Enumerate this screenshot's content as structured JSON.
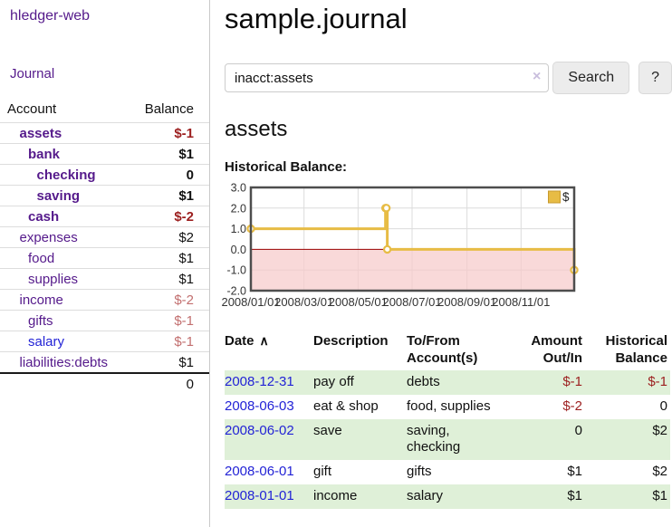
{
  "app": {
    "title": "hledger-web"
  },
  "colors": {
    "link_purple": "#551a8b",
    "link_blue": "#2323d6",
    "negative_strong": "#9c1f1f",
    "negative_muted": "#c26f6f",
    "row_stripe_green": "#dff0d8",
    "chart_line_gold": "#e7bc45"
  },
  "sidebar": {
    "journal_link": "Journal",
    "headers": {
      "account": "Account",
      "balance": "Balance"
    },
    "accounts": [
      {
        "name": "assets",
        "balance": "$-1",
        "level": 1,
        "bold": true,
        "neg": "strong"
      },
      {
        "name": "bank",
        "balance": "$1",
        "level": 2,
        "bold": true
      },
      {
        "name": "checking",
        "balance": "0",
        "level": 3,
        "bold": true
      },
      {
        "name": "saving",
        "balance": "$1",
        "level": 3,
        "bold": true
      },
      {
        "name": "cash",
        "balance": "$-2",
        "level": 2,
        "bold": true,
        "neg": "strong"
      },
      {
        "name": "expenses",
        "balance": "$2",
        "level": 1
      },
      {
        "name": "food",
        "balance": "$1",
        "level": 2
      },
      {
        "name": "supplies",
        "balance": "$1",
        "level": 2
      },
      {
        "name": "income",
        "balance": "$-2",
        "level": 1,
        "neg": "muted"
      },
      {
        "name": "gifts",
        "balance": "$-1",
        "level": 2,
        "neg": "muted"
      },
      {
        "name": "salary",
        "balance": "$-1",
        "level": 2,
        "neg": "muted",
        "link": "blue"
      },
      {
        "name": "liabilities:debts",
        "balance": "$1",
        "level": 1
      }
    ],
    "total": "0"
  },
  "main": {
    "title": "sample.journal",
    "search": {
      "value": "inacct:assets",
      "clear_icon": "×",
      "search_label": "Search",
      "help_label": "?"
    },
    "account_heading": "assets",
    "chart_label": "Historical Balance:"
  },
  "chart_data": {
    "type": "line",
    "step": true,
    "title": "Historical Balance",
    "series": [
      {
        "name": "$",
        "points": [
          [
            "2008-01-01",
            1
          ],
          [
            "2008-06-01",
            2
          ],
          [
            "2008-06-02",
            2
          ],
          [
            "2008-06-03",
            0
          ],
          [
            "2008-12-31",
            -1
          ]
        ]
      }
    ],
    "x_range": [
      "2008-01-01",
      "2008-12-31"
    ],
    "ylim": [
      -2,
      3
    ],
    "y_ticks": [
      "3.0",
      "2.0",
      "1.0",
      "0.0",
      "-1.0",
      "-2.0"
    ],
    "x_ticks": [
      {
        "label": "2008/01/01",
        "date": "2008-01-01"
      },
      {
        "label": "2008/03/01",
        "date": "2008-03-01"
      },
      {
        "label": "2008/05/01",
        "date": "2008-05-01"
      },
      {
        "label": "2008/07/01",
        "date": "2008-07-01"
      },
      {
        "label": "2008/09/01",
        "date": "2008-09-01"
      },
      {
        "label": "2008/11/01",
        "date": "2008-11-01"
      }
    ],
    "legend": [
      {
        "label": "$",
        "color": "#e7bc45"
      }
    ],
    "legend_position": "top-right",
    "grid": true,
    "line_color": "#e7bc45",
    "marker": "open-circle",
    "zero_line_color": "#990000",
    "negative_region_fill": "#f6caca"
  },
  "register": {
    "headers": {
      "date": "Date",
      "description": "Description",
      "accounts": "To/From Account(s)",
      "amount": "Amount Out/In",
      "balance": "Historical Balance"
    },
    "sort_icon": "∧",
    "rows": [
      {
        "date": "2008-12-31",
        "description": "pay off",
        "accounts": "debts",
        "amount": "$-1",
        "amount_neg": true,
        "balance": "$-1",
        "balance_neg": true
      },
      {
        "date": "2008-06-03",
        "description": "eat & shop",
        "accounts": "food, supplies",
        "amount": "$-2",
        "amount_neg": true,
        "balance": "0"
      },
      {
        "date": "2008-06-02",
        "description": "save",
        "accounts": "saving,\nchecking",
        "amount": "0",
        "balance": "$2"
      },
      {
        "date": "2008-06-01",
        "description": "gift",
        "accounts": "gifts",
        "amount": "$1",
        "balance": "$2"
      },
      {
        "date": "2008-01-01",
        "description": "income",
        "accounts": "salary",
        "amount": "$1",
        "balance": "$1"
      }
    ]
  }
}
